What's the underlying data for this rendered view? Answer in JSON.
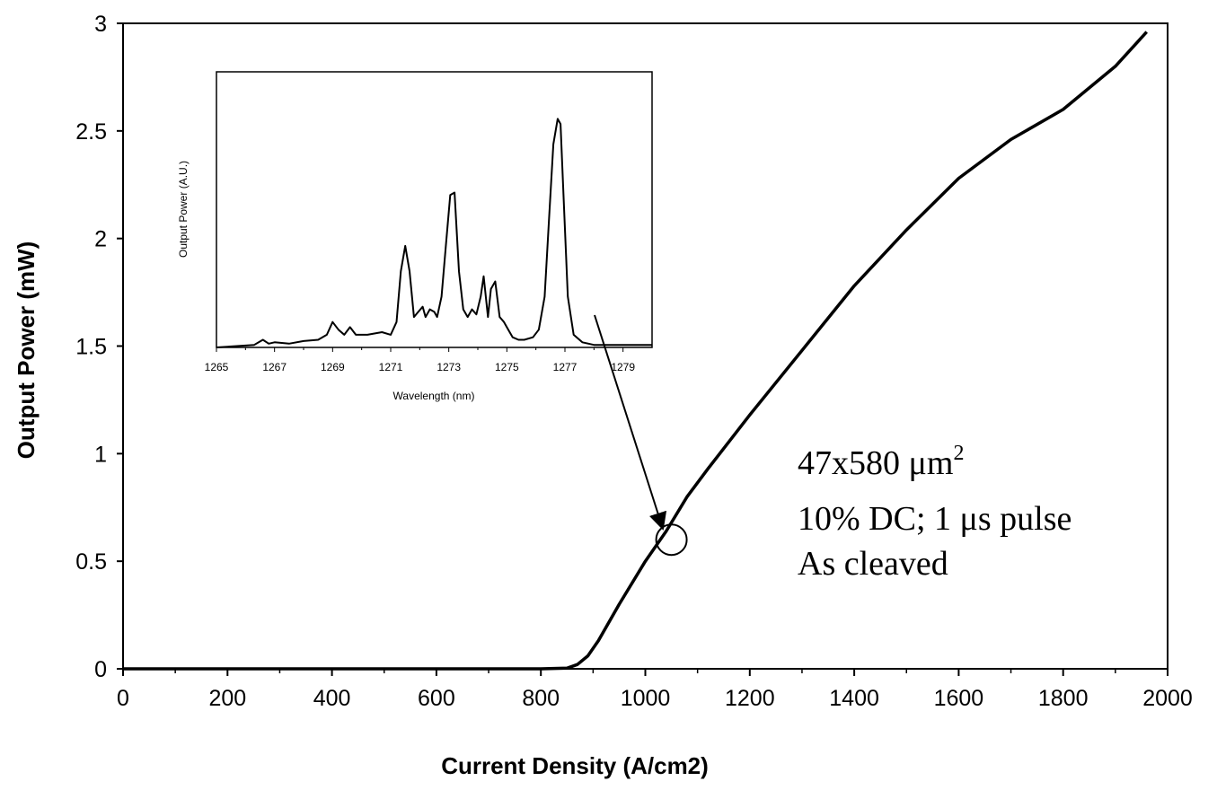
{
  "chart_data": [
    {
      "type": "line",
      "title": "",
      "xlabel": "Current Density (A/cm2)",
      "ylabel": "Output Power (mW)",
      "xlim": [
        0,
        2000
      ],
      "ylim": [
        0,
        3
      ],
      "x_ticks": [
        "0",
        "200",
        "400",
        "600",
        "800",
        "1000",
        "1200",
        "1400",
        "1600",
        "1800",
        "2000"
      ],
      "y_ticks": [
        "0",
        "0.5",
        "1",
        "1.5",
        "2",
        "2.5",
        "3"
      ],
      "grid": false,
      "legend": "none",
      "series": [
        {
          "x": [
            0,
            200,
            400,
            600,
            800,
            850,
            870,
            890,
            910,
            950,
            1000,
            1040,
            1080,
            1120,
            1200,
            1300,
            1400,
            1500,
            1600,
            1700,
            1800,
            1900,
            1960
          ],
          "y": [
            0,
            0,
            0,
            0,
            0,
            0.003,
            0.02,
            0.06,
            0.13,
            0.3,
            0.5,
            0.64,
            0.8,
            0.93,
            1.18,
            1.48,
            1.78,
            2.04,
            2.28,
            2.46,
            2.6,
            2.8,
            2.96
          ]
        }
      ],
      "annotations": {
        "lines": [
          "47x580 μm",
          "10% DC; 1 μs pulse",
          "As cleaved"
        ],
        "superscript": "2",
        "marker": {
          "x": 1050,
          "y": 0.6
        }
      }
    },
    {
      "type": "line",
      "role": "inset",
      "xlabel": "Wavelength (nm)",
      "ylabel": "Output Power (A.U.)",
      "xlim": [
        1265,
        1280
      ],
      "ylim": [
        0,
        1.05
      ],
      "x_ticks": [
        "1265",
        "1267",
        "1269",
        "1271",
        "1273",
        "1275",
        "1277",
        "1279"
      ],
      "series": [
        {
          "x": [
            1265,
            1266.3,
            1266.6,
            1266.8,
            1267.0,
            1267.5,
            1268,
            1268.5,
            1268.8,
            1269.0,
            1269.2,
            1269.4,
            1269.6,
            1269.8,
            1270.2,
            1270.7,
            1271.0,
            1271.2,
            1271.35,
            1271.5,
            1271.65,
            1271.8,
            1271.95,
            1272.1,
            1272.2,
            1272.35,
            1272.5,
            1272.6,
            1272.75,
            1272.9,
            1273.05,
            1273.2,
            1273.35,
            1273.5,
            1273.65,
            1273.8,
            1273.95,
            1274.1,
            1274.2,
            1274.35,
            1274.45,
            1274.6,
            1274.75,
            1274.9,
            1275.05,
            1275.2,
            1275.4,
            1275.6,
            1275.9,
            1276.1,
            1276.3,
            1276.45,
            1276.6,
            1276.75,
            1276.85,
            1276.95,
            1277.1,
            1277.3,
            1277.6,
            1278,
            1279,
            1280
          ],
          "y": [
            0.0,
            0.01,
            0.03,
            0.015,
            0.02,
            0.015,
            0.025,
            0.03,
            0.05,
            0.1,
            0.07,
            0.05,
            0.08,
            0.05,
            0.05,
            0.06,
            0.05,
            0.1,
            0.3,
            0.4,
            0.3,
            0.12,
            0.14,
            0.16,
            0.12,
            0.15,
            0.14,
            0.12,
            0.2,
            0.4,
            0.6,
            0.61,
            0.3,
            0.15,
            0.12,
            0.15,
            0.13,
            0.2,
            0.28,
            0.12,
            0.23,
            0.26,
            0.12,
            0.1,
            0.07,
            0.04,
            0.03,
            0.03,
            0.04,
            0.07,
            0.2,
            0.5,
            0.8,
            0.9,
            0.88,
            0.6,
            0.2,
            0.05,
            0.02,
            0.01,
            0.01,
            0.01
          ]
        }
      ]
    }
  ]
}
